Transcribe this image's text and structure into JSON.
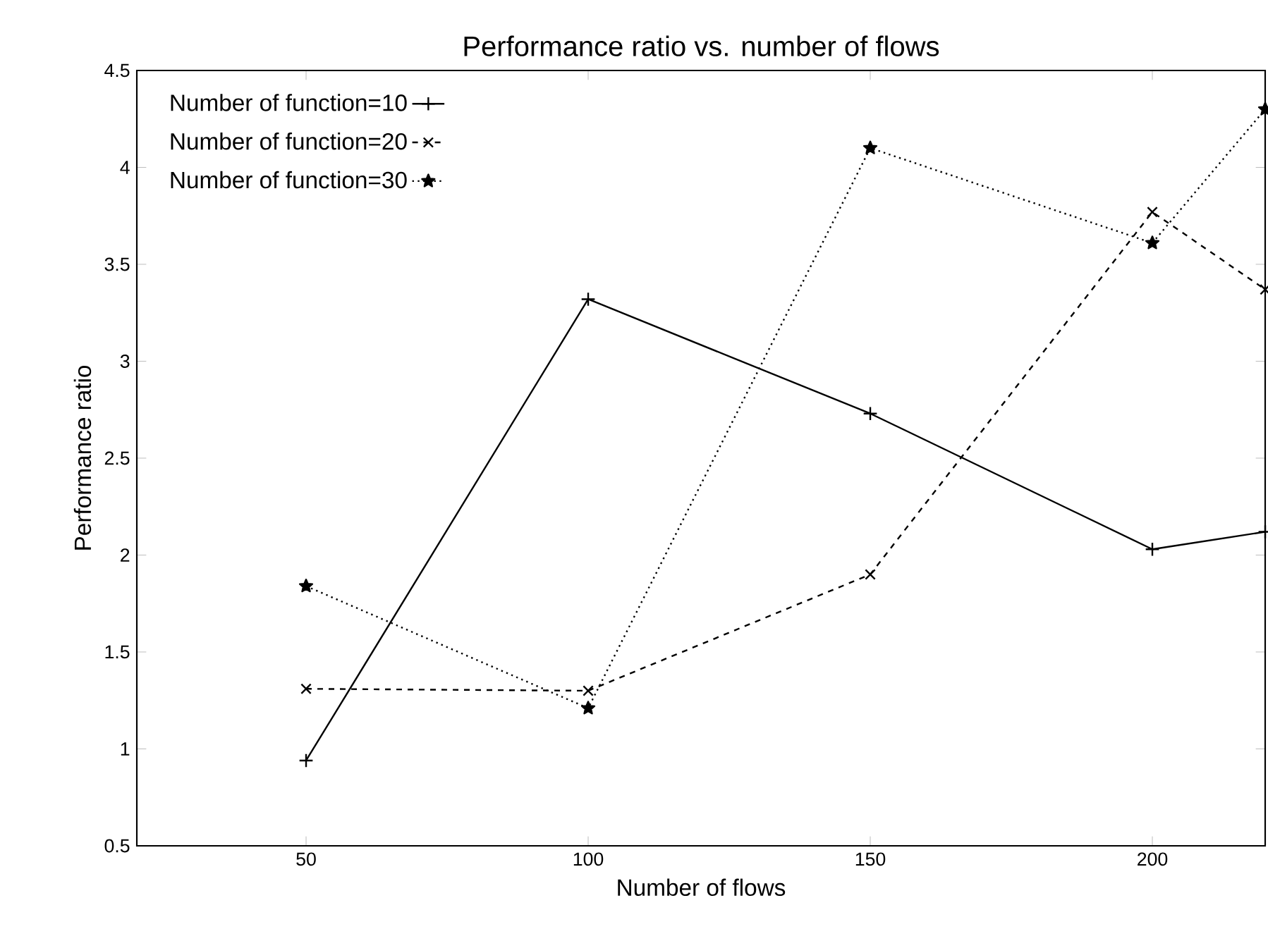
{
  "chart_data": {
    "type": "line",
    "title": "Performance ratio vs. number of flows",
    "xlabel": "Number of flows",
    "ylabel": "Performance ratio",
    "xlim": [
      20,
      220
    ],
    "ylim": [
      0.5,
      4.5
    ],
    "xticks": [
      50,
      100,
      150,
      200
    ],
    "yticks": [
      0.5,
      1,
      1.5,
      2,
      2.5,
      3,
      3.5,
      4,
      4.5
    ],
    "x": [
      50,
      100,
      150,
      200,
      220
    ],
    "legend": "top left",
    "grid": false,
    "series": [
      {
        "name": "Number of function=10",
        "color": "#000000",
        "marker": "plus",
        "line_style": "solid",
        "values": [
          0.94,
          3.32,
          2.73,
          2.03,
          2.12
        ]
      },
      {
        "name": "Number of function=20",
        "color": "#000000",
        "marker": "cross",
        "line_style": "dashed",
        "values": [
          1.31,
          1.3,
          1.9,
          3.77,
          3.37
        ]
      },
      {
        "name": "Number of function=30",
        "color": "#000000",
        "marker": "star",
        "line_style": "dotted",
        "values": [
          1.84,
          1.21,
          4.1,
          3.61,
          4.3
        ]
      }
    ]
  }
}
